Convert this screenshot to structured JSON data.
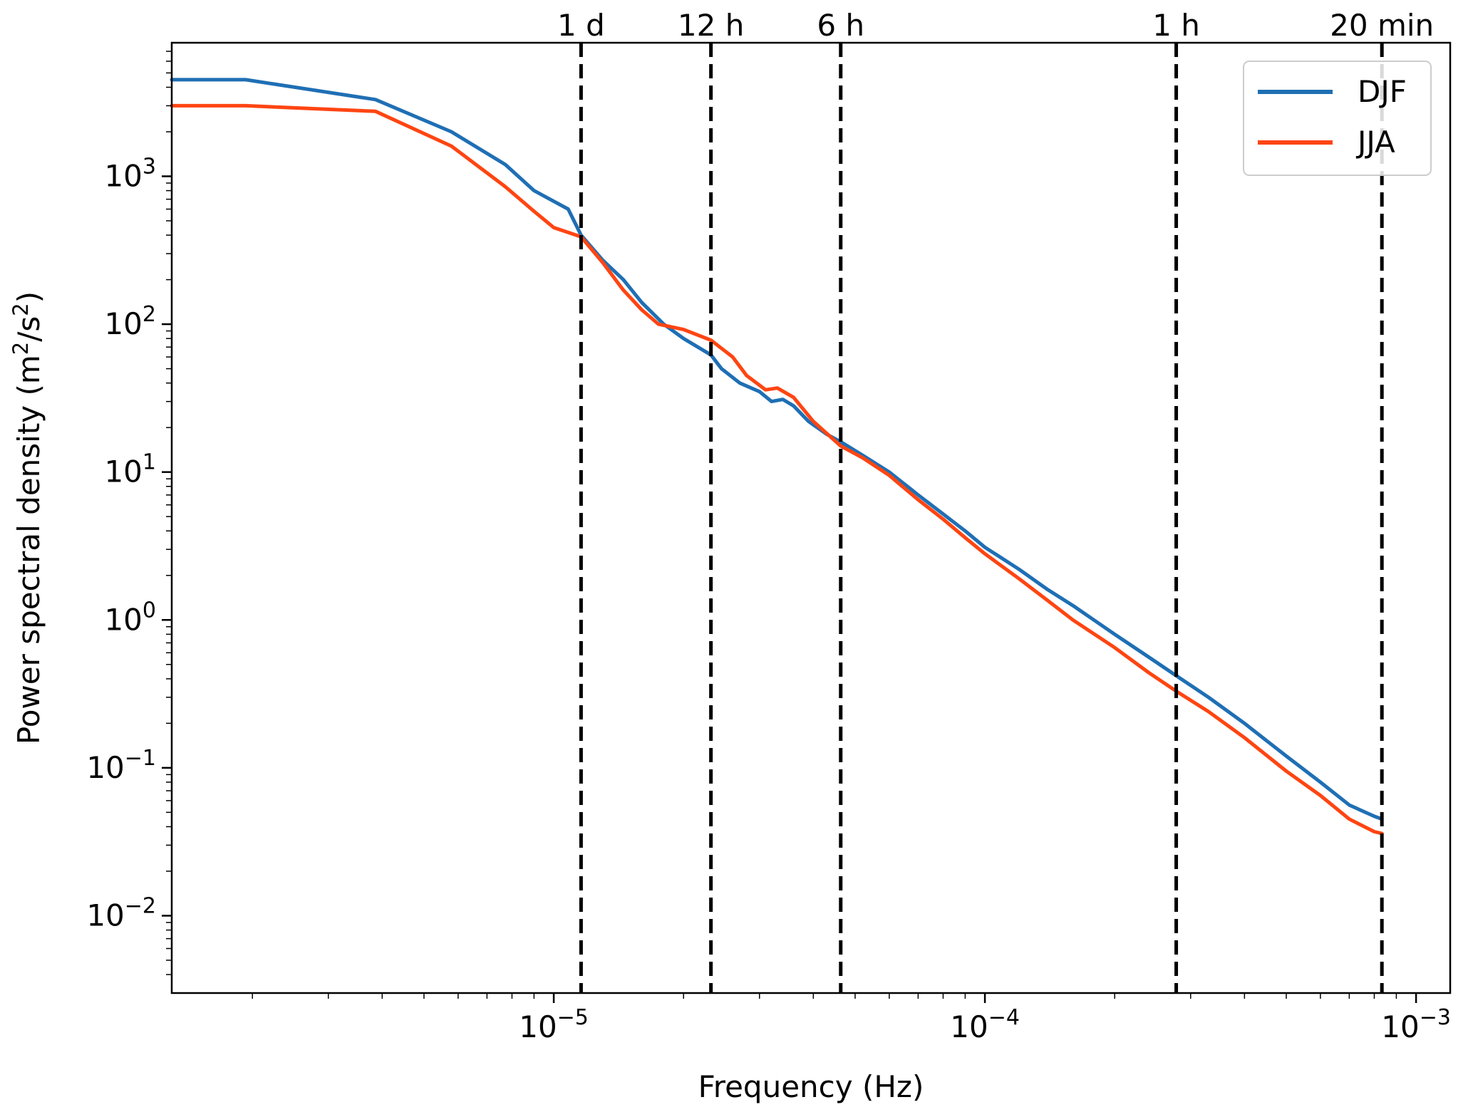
{
  "chart_data": {
    "type": "line",
    "xlabel": "Frequency (Hz)",
    "ylabel_prefix": "Power spectral density (m",
    "ylabel_sup1": "2",
    "ylabel_mid": "/s",
    "ylabel_sup2": "2",
    "ylabel_suffix": ")",
    "x_scale": "log",
    "y_scale": "log",
    "xlim": [
      1.3e-06,
      0.0012
    ],
    "ylim": [
      0.003,
      8000
    ],
    "grid": false,
    "legend_position": "top-right",
    "x_ticks": [
      {
        "value": 1e-05,
        "base": "10",
        "exp": "−5"
      },
      {
        "value": 0.0001,
        "base": "10",
        "exp": "−4"
      },
      {
        "value": 0.001,
        "base": "10",
        "exp": "−3"
      }
    ],
    "y_ticks": [
      {
        "value": 1000,
        "base": "10",
        "exp": "3"
      },
      {
        "value": 100,
        "base": "10",
        "exp": "2"
      },
      {
        "value": 10,
        "base": "10",
        "exp": "1"
      },
      {
        "value": 1,
        "base": "10",
        "exp": "0"
      },
      {
        "value": 0.1,
        "base": "10",
        "exp": "−1"
      },
      {
        "value": 0.01,
        "base": "10",
        "exp": "−2"
      }
    ],
    "vlines": [
      {
        "x": 1.157e-05,
        "label": "1 d"
      },
      {
        "x": 2.315e-05,
        "label": "12 h"
      },
      {
        "x": 4.63e-05,
        "label": "6 h"
      },
      {
        "x": 0.0002778,
        "label": "1 h"
      },
      {
        "x": 0.0008333,
        "label": "20 min"
      }
    ],
    "series": [
      {
        "name": "DJF",
        "color": "#1f6fb4",
        "points": [
          [
            1.3e-06,
            4500
          ],
          [
            1.93e-06,
            4500
          ],
          [
            3.86e-06,
            3300
          ],
          [
            5.79e-06,
            2000
          ],
          [
            7.72e-06,
            1200
          ],
          [
            9e-06,
            800
          ],
          [
            1.08e-05,
            600
          ],
          [
            1.157e-05,
            400
          ],
          [
            1.3e-05,
            270
          ],
          [
            1.45e-05,
            200
          ],
          [
            1.6e-05,
            140
          ],
          [
            1.8e-05,
            100
          ],
          [
            2e-05,
            80
          ],
          [
            2.315e-05,
            62
          ],
          [
            2.45e-05,
            50
          ],
          [
            2.7e-05,
            40
          ],
          [
            3e-05,
            35
          ],
          [
            3.2e-05,
            30
          ],
          [
            3.4e-05,
            31
          ],
          [
            3.6e-05,
            28
          ],
          [
            3.9e-05,
            22
          ],
          [
            4.3e-05,
            18
          ],
          [
            4.63e-05,
            16
          ],
          [
            5.2e-05,
            13
          ],
          [
            6e-05,
            10
          ],
          [
            7e-05,
            7
          ],
          [
            8e-05,
            5.2
          ],
          [
            9e-05,
            4.0
          ],
          [
            0.0001,
            3.1
          ],
          [
            0.00012,
            2.2
          ],
          [
            0.00014,
            1.6
          ],
          [
            0.00016,
            1.25
          ],
          [
            0.0002,
            0.8
          ],
          [
            0.00024,
            0.56
          ],
          [
            0.0002778,
            0.42
          ],
          [
            0.00033,
            0.3
          ],
          [
            0.0004,
            0.2
          ],
          [
            0.0005,
            0.12
          ],
          [
            0.0006,
            0.08
          ],
          [
            0.0007,
            0.056
          ],
          [
            0.0008,
            0.047
          ],
          [
            0.0008333,
            0.045
          ]
        ]
      },
      {
        "name": "JJA",
        "color": "#ff4512",
        "points": [
          [
            1.3e-06,
            3000
          ],
          [
            1.93e-06,
            3000
          ],
          [
            3.86e-06,
            2750
          ],
          [
            5.79e-06,
            1600
          ],
          [
            7.72e-06,
            850
          ],
          [
            9e-06,
            580
          ],
          [
            1e-05,
            450
          ],
          [
            1.157e-05,
            390
          ],
          [
            1.3e-05,
            260
          ],
          [
            1.45e-05,
            170
          ],
          [
            1.6e-05,
            125
          ],
          [
            1.75e-05,
            100
          ],
          [
            2e-05,
            92
          ],
          [
            2.315e-05,
            78
          ],
          [
            2.6e-05,
            60
          ],
          [
            2.8e-05,
            45
          ],
          [
            3.1e-05,
            36
          ],
          [
            3.3e-05,
            37
          ],
          [
            3.6e-05,
            32
          ],
          [
            4e-05,
            22
          ],
          [
            4.63e-05,
            15
          ],
          [
            5.2e-05,
            12.5
          ],
          [
            6e-05,
            9.5
          ],
          [
            7e-05,
            6.5
          ],
          [
            8e-05,
            4.8
          ],
          [
            9e-05,
            3.6
          ],
          [
            0.0001,
            2.8
          ],
          [
            0.00012,
            1.9
          ],
          [
            0.00014,
            1.35
          ],
          [
            0.00016,
            1.0
          ],
          [
            0.0002,
            0.65
          ],
          [
            0.00024,
            0.44
          ],
          [
            0.0002778,
            0.33
          ],
          [
            0.00033,
            0.24
          ],
          [
            0.0004,
            0.16
          ],
          [
            0.0005,
            0.095
          ],
          [
            0.0006,
            0.065
          ],
          [
            0.0007,
            0.045
          ],
          [
            0.0008,
            0.037
          ],
          [
            0.0008333,
            0.036
          ]
        ]
      }
    ]
  }
}
